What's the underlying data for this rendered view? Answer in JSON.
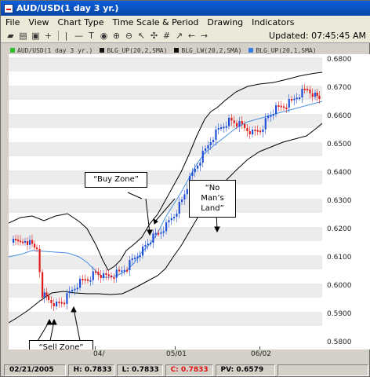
{
  "window": {
    "title": "AUD/USD(1 day  3 yr.)"
  },
  "menu": [
    "File",
    "View",
    "Chart Type",
    "Time Scale & Period",
    "Drawing",
    "Indicators"
  ],
  "toolbar": {
    "updated": "Updated: 07:45:45 AM",
    "icons": [
      "folder-icon",
      "print-icon",
      "save-icon",
      "crosshair-icon",
      "vline-icon",
      "hline-icon",
      "text-icon",
      "circle-icon",
      "zoom-in-icon",
      "zoom-out-icon",
      "pointer-icon",
      "drag-icon",
      "grid-icon",
      "trendline-icon",
      "arrow-left-icon",
      "arrow-right-icon"
    ]
  },
  "legend": [
    {
      "label": "AUD/USD(1 day  3 yr.)",
      "color": "#2bbf2b"
    },
    {
      "label": "BLG_UP(20,2,SMA)",
      "color": "#111111"
    },
    {
      "label": "BLG_LW(20,2,SMA)",
      "color": "#111111"
    },
    {
      "label": "BLG_UP(20,1,SMA)",
      "color": "#3a7fe0"
    }
  ],
  "yaxis": {
    "labels": [
      "0.6800",
      "0.6700",
      "0.6600",
      "0.6500",
      "0.6400",
      "0.6300",
      "0.6200",
      "0.6100",
      "0.6000",
      "0.5900",
      "0.5800"
    ]
  },
  "xaxis": {
    "labels": [
      "04/",
      "05/01",
      "06/02"
    ]
  },
  "callouts": {
    "buy": "“Buy Zone”",
    "sell": "“Sell Zone”",
    "noman_l1": "“No",
    "noman_l2": "Man’s",
    "noman_l3": "Land”"
  },
  "status": {
    "date": "02/21/2005",
    "high": "H: 0.7833",
    "low": "L: 0.7833",
    "close": "C: 0.7833",
    "pv": "PV: 0.6579"
  },
  "colors": {
    "up": "#1f4fd6",
    "down": "#e01b1b",
    "mid": "#4a90e2",
    "band": "#000000"
  }
}
